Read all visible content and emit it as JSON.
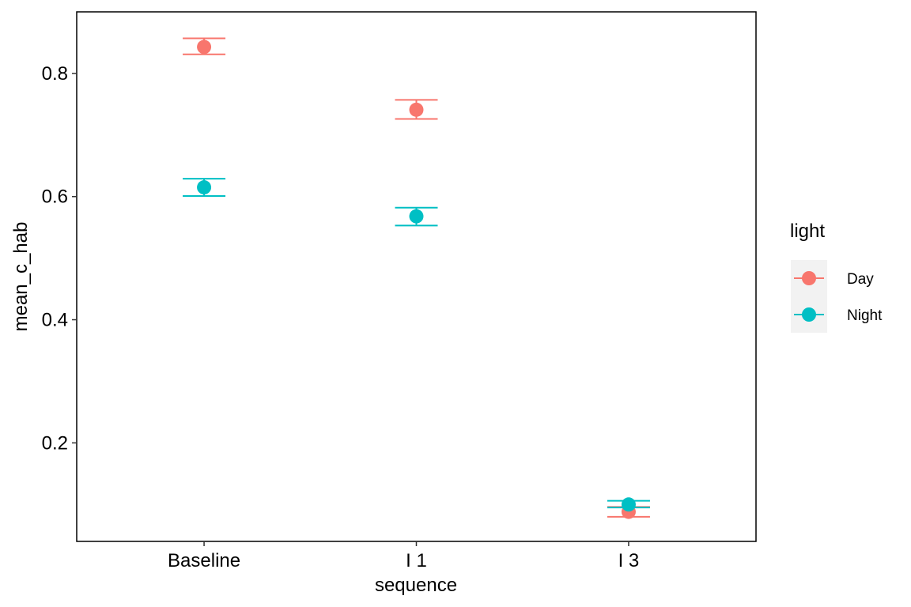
{
  "chart_data": {
    "type": "scatter",
    "subtype": "point-with-errorbars",
    "xlabel": "sequence",
    "ylabel": "mean_c_hab",
    "categories": [
      "Baseline",
      "I 1",
      "I 3"
    ],
    "ylim": [
      0.04,
      0.9
    ],
    "yticks": [
      "0.2",
      "0.4",
      "0.6",
      "0.8"
    ],
    "grid": false,
    "legend": {
      "title": "light",
      "position": "right",
      "entries": [
        "Day",
        "Night"
      ]
    },
    "series": [
      {
        "name": "Day",
        "color": "#F8766D",
        "values": [
          0.843,
          0.741,
          0.088
        ],
        "ymin": [
          0.831,
          0.726,
          0.08
        ],
        "ymax": [
          0.857,
          0.757,
          0.096
        ]
      },
      {
        "name": "Night",
        "color": "#00BFC4",
        "values": [
          0.615,
          0.568,
          0.1
        ],
        "ymin": [
          0.601,
          0.553,
          0.095
        ],
        "ymax": [
          0.629,
          0.582,
          0.106
        ]
      }
    ]
  }
}
